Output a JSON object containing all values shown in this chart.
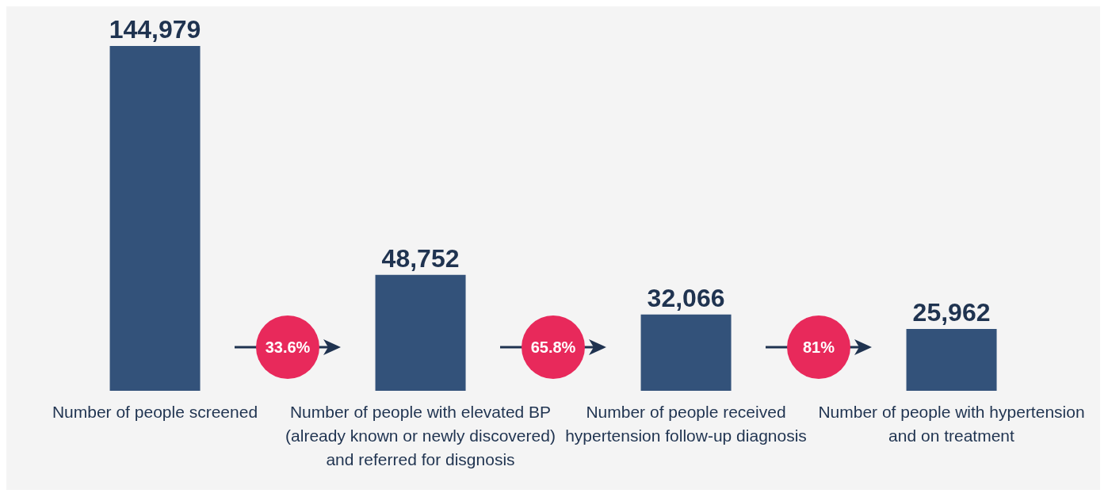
{
  "chart_data": {
    "type": "bar",
    "categories": [
      "Number of people screened",
      "Number of people with elevated BP (already known or newly discovered) and referred for disgnosis",
      "Number of people received hypertension follow-up diagnosis",
      "Number of people with hypertension and on treatment"
    ],
    "values": [
      144979,
      48752,
      32066,
      25962
    ],
    "color": "#33527a",
    "value_labels": [
      "144,979",
      "48,752",
      "32,066",
      "25,962"
    ],
    "grid": false,
    "legend": false,
    "annotations": [
      "33.6%",
      "65.8%",
      "81%"
    ]
  }
}
